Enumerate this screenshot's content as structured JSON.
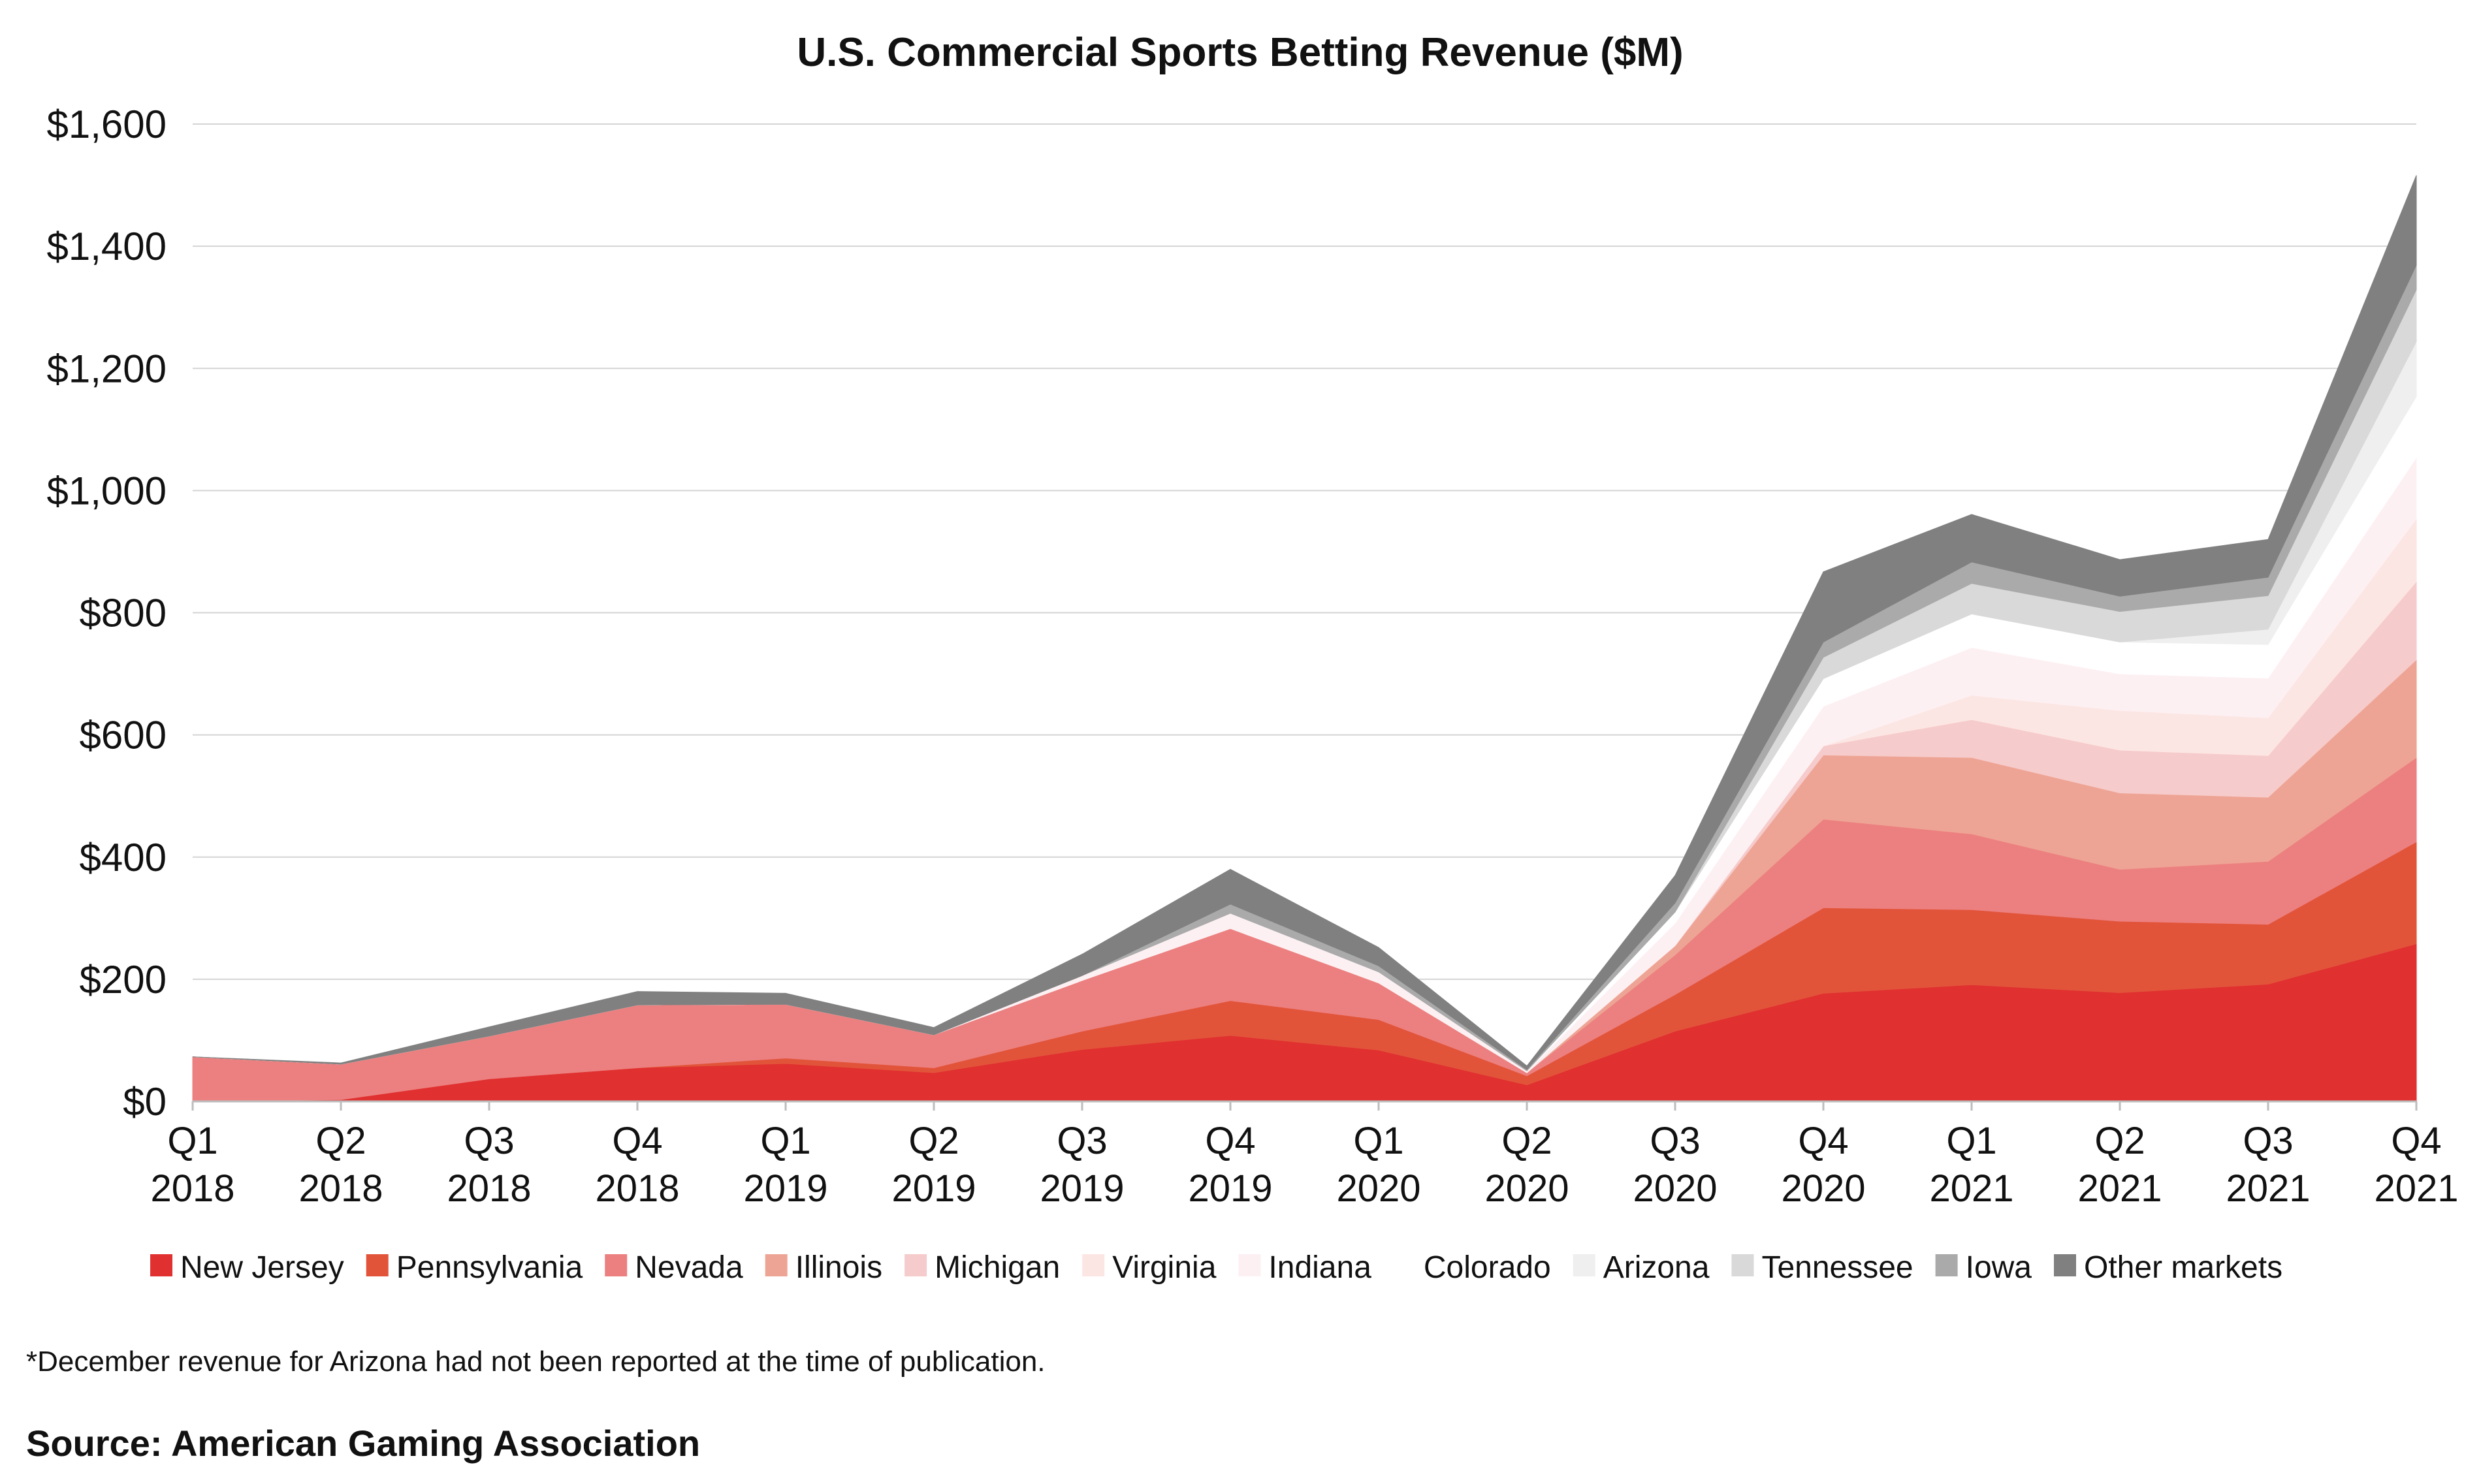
{
  "chart_data": {
    "type": "area",
    "stacked": true,
    "title": "U.S. Commercial Sports Betting Revenue ($M)",
    "xlabel": "",
    "ylabel": "",
    "ylim": [
      0,
      1600
    ],
    "yticks": [
      "$0",
      "$200",
      "$400",
      "$600",
      "$800",
      "$1,000",
      "$1,200",
      "$1,400",
      "$1,600"
    ],
    "ytick_values": [
      0,
      200,
      400,
      600,
      800,
      1000,
      1200,
      1400,
      1600
    ],
    "grid": true,
    "legend_position": "bottom",
    "categories": [
      [
        "Q1",
        "2018"
      ],
      [
        "Q2",
        "2018"
      ],
      [
        "Q3",
        "2018"
      ],
      [
        "Q4",
        "2018"
      ],
      [
        "Q1",
        "2019"
      ],
      [
        "Q2",
        "2019"
      ],
      [
        "Q3",
        "2019"
      ],
      [
        "Q4",
        "2019"
      ],
      [
        "Q1",
        "2020"
      ],
      [
        "Q2",
        "2020"
      ],
      [
        "Q3",
        "2020"
      ],
      [
        "Q4",
        "2020"
      ],
      [
        "Q1",
        "2021"
      ],
      [
        "Q2",
        "2021"
      ],
      [
        "Q3",
        "2021"
      ],
      [
        "Q4",
        "2021"
      ]
    ],
    "series": [
      {
        "name": "New Jersey",
        "color": "#e03030",
        "values": [
          0,
          3,
          37,
          55,
          62,
          47,
          85,
          108,
          84,
          27,
          115,
          177,
          191,
          178,
          192,
          258
        ]
      },
      {
        "name": "Pennsylvania",
        "color": "#e2543a",
        "values": [
          0,
          0,
          0,
          0,
          9,
          8,
          30,
          57,
          50,
          15,
          60,
          140,
          123,
          117,
          98,
          167
        ]
      },
      {
        "name": "Nevada",
        "color": "#ec8080",
        "values": [
          73,
          58,
          70,
          103,
          88,
          54,
          83,
          118,
          60,
          5,
          65,
          145,
          124,
          85,
          103,
          138
        ]
      },
      {
        "name": "Illinois",
        "color": "#eea494",
        "values": [
          0,
          0,
          0,
          0,
          0,
          0,
          0,
          0,
          0,
          0,
          15,
          105,
          125,
          125,
          105,
          160
        ]
      },
      {
        "name": "Michigan",
        "color": "#f6cbcb",
        "values": [
          0,
          0,
          0,
          0,
          0,
          0,
          0,
          0,
          0,
          0,
          0,
          15,
          62,
          70,
          68,
          128
        ]
      },
      {
        "name": "Virginia",
        "color": "#fce6e3",
        "values": [
          0,
          0,
          0,
          0,
          0,
          0,
          0,
          0,
          0,
          0,
          0,
          0,
          40,
          65,
          62,
          103
        ]
      },
      {
        "name": "Indiana",
        "color": "#fdf0f3",
        "values": [
          0,
          0,
          0,
          0,
          0,
          0,
          8,
          25,
          18,
          3,
          37,
          65,
          78,
          60,
          65,
          100
        ]
      },
      {
        "name": "Colorado",
        "color": "#ffffff",
        "values": [
          0,
          0,
          0,
          0,
          0,
          0,
          0,
          0,
          0,
          0,
          18,
          45,
          55,
          52,
          55,
          100
        ]
      },
      {
        "name": "Arizona",
        "color": "#efefef",
        "values": [
          0,
          0,
          0,
          0,
          0,
          0,
          0,
          0,
          0,
          0,
          0,
          0,
          0,
          0,
          25,
          90
        ]
      },
      {
        "name": "Tennessee",
        "color": "#d9d9d9",
        "values": [
          0,
          0,
          0,
          0,
          0,
          0,
          0,
          0,
          0,
          0,
          0,
          35,
          50,
          50,
          55,
          85
        ]
      },
      {
        "name": "Iowa",
        "color": "#aaaaaa",
        "values": [
          0,
          0,
          0,
          0,
          0,
          0,
          0,
          15,
          10,
          2,
          15,
          25,
          35,
          25,
          30,
          40
        ]
      },
      {
        "name": "Other markets",
        "color": "#808080",
        "values": [
          0,
          2,
          15,
          22,
          18,
          12,
          35,
          57,
          30,
          6,
          45,
          115,
          78,
          60,
          62,
          147
        ]
      }
    ],
    "footnote": "*December revenue for Arizona had not been reported at the time of publication.",
    "source": "Source: American Gaming Association"
  }
}
